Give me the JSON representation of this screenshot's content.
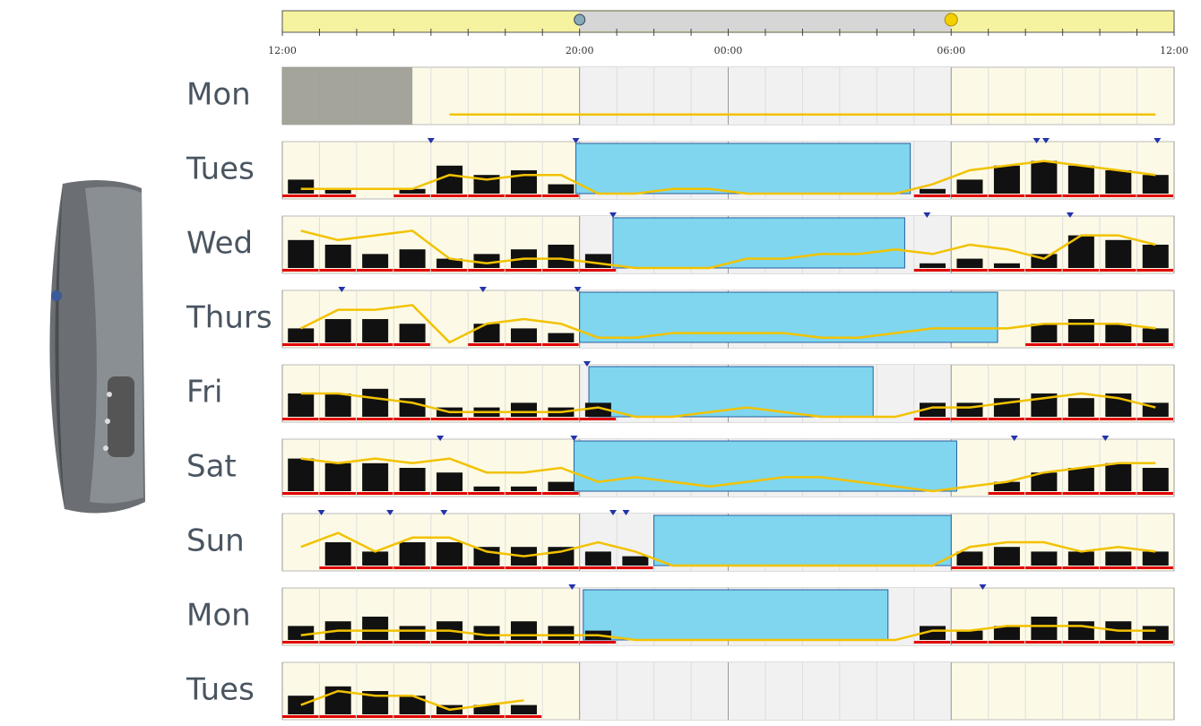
{
  "chart_data": {
    "type": "actigram",
    "xlim": [
      0,
      24
    ],
    "xticks": [
      {
        "value": 0,
        "label": "12:00"
      },
      {
        "value": 8,
        "label": "20:00"
      },
      {
        "value": 12,
        "label": "00:00"
      },
      {
        "value": 18,
        "label": "06:00"
      },
      {
        "value": 24,
        "label": "12:00"
      }
    ],
    "night": [
      8,
      18
    ],
    "activity_max": 10,
    "colors": {
      "activity": "#111111",
      "light": "#f2c200",
      "sleep": "#7fd6ee",
      "wake": "#e00000",
      "event": "#2233aa"
    },
    "days": [
      {
        "label": "Mon",
        "no_data": [
          0,
          3.5
        ],
        "sleep": null,
        "events": [],
        "activity": [
          null,
          null,
          null,
          null,
          0,
          0,
          0,
          0,
          0,
          0,
          0,
          0,
          0,
          0,
          0,
          0,
          0,
          0,
          0,
          0,
          0,
          0,
          0,
          0
        ],
        "light": [
          null,
          null,
          null,
          null,
          1,
          1,
          1,
          1,
          1,
          1,
          1,
          1,
          1,
          1,
          1,
          1,
          1,
          1,
          1,
          1,
          1,
          1,
          1,
          1
        ]
      },
      {
        "label": "Tues",
        "no_data": null,
        "sleep": [
          7.9,
          16.9
        ],
        "events": [
          4.0,
          7.9,
          20.3,
          20.55,
          23.55
        ],
        "activity": [
          3,
          1,
          0,
          1,
          6,
          4,
          5,
          2,
          0,
          0,
          0,
          0,
          0,
          0,
          0,
          0,
          0,
          1,
          3,
          6,
          7,
          6,
          5,
          4
        ],
        "light": [
          1,
          1,
          1,
          1,
          4,
          3,
          4,
          4,
          0,
          0,
          1,
          1,
          0,
          0,
          0,
          0,
          0,
          2,
          5,
          6,
          7,
          6,
          5,
          4
        ]
      },
      {
        "label": "Wed",
        "no_data": null,
        "sleep": [
          8.9,
          16.75
        ],
        "events": [
          8.9,
          17.35,
          21.2
        ],
        "activity": [
          6,
          5,
          3,
          4,
          2,
          3,
          4,
          5,
          3,
          0,
          0,
          0,
          0,
          0,
          0,
          0,
          0,
          1,
          2,
          1,
          3,
          7,
          6,
          5
        ],
        "light": [
          8,
          6,
          7,
          8,
          2,
          1,
          2,
          2,
          1,
          0,
          0,
          0,
          2,
          2,
          3,
          3,
          4,
          3,
          5,
          4,
          2,
          7,
          7,
          5
        ]
      },
      {
        "label": "Thurs",
        "no_data": null,
        "sleep": [
          8.0,
          19.25
        ],
        "events": [
          1.6,
          5.4,
          7.95
        ],
        "activity": [
          3,
          5,
          5,
          4,
          0,
          4,
          3,
          2,
          0,
          0,
          0,
          0,
          0,
          0,
          0,
          0,
          0,
          0,
          0,
          0,
          4,
          5,
          4,
          3
        ],
        "light": [
          3,
          7,
          7,
          8,
          0,
          4,
          5,
          4,
          1,
          1,
          2,
          2,
          2,
          2,
          1,
          1,
          2,
          3,
          3,
          3,
          4,
          4,
          4,
          3
        ]
      },
      {
        "label": "Fri",
        "no_data": null,
        "sleep": [
          8.25,
          15.9
        ],
        "events": [
          8.2
        ],
        "activity": [
          5,
          5,
          6,
          4,
          2,
          2,
          3,
          2,
          3,
          0,
          0,
          0,
          0,
          0,
          0,
          0,
          0,
          3,
          3,
          4,
          5,
          4,
          5,
          3
        ],
        "light": [
          5,
          5,
          4,
          3,
          1,
          1,
          1,
          1,
          2,
          0,
          0,
          1,
          2,
          1,
          0,
          0,
          0,
          2,
          2,
          3,
          4,
          5,
          4,
          2
        ]
      },
      {
        "label": "Sat",
        "no_data": null,
        "sleep": [
          7.85,
          18.15
        ],
        "events": [
          4.25,
          7.85,
          19.7,
          22.15
        ],
        "activity": [
          7,
          6,
          6,
          5,
          4,
          1,
          1,
          2,
          0,
          0,
          0,
          0,
          0,
          0,
          0,
          0,
          0,
          0,
          0,
          2,
          4,
          5,
          6,
          5
        ],
        "light": [
          7,
          6,
          7,
          6,
          7,
          4,
          4,
          5,
          2,
          3,
          2,
          1,
          2,
          3,
          3,
          2,
          1,
          0,
          1,
          2,
          4,
          5,
          6,
          6
        ]
      },
      {
        "label": "Sun",
        "no_data": null,
        "sleep": [
          10.0,
          18.0
        ],
        "events": [
          1.05,
          2.9,
          4.35,
          8.9,
          9.25
        ],
        "activity": [
          0,
          5,
          3,
          5,
          5,
          4,
          4,
          4,
          3,
          2,
          0,
          0,
          0,
          0,
          0,
          0,
          0,
          0,
          3,
          4,
          3,
          3,
          3,
          3
        ],
        "light": [
          4,
          7,
          3,
          6,
          6,
          3,
          2,
          3,
          5,
          3,
          0,
          0,
          0,
          0,
          0,
          0,
          0,
          0,
          4,
          5,
          5,
          3,
          4,
          3
        ]
      },
      {
        "label": "Mon",
        "no_data": null,
        "sleep": [
          8.1,
          16.3
        ],
        "events": [
          7.8,
          18.85
        ],
        "activity": [
          3,
          4,
          5,
          3,
          4,
          3,
          4,
          3,
          2,
          0,
          0,
          0,
          0,
          0,
          0,
          0,
          0,
          3,
          2,
          3,
          5,
          4,
          4,
          3
        ],
        "light": [
          1,
          2,
          2,
          2,
          2,
          1,
          1,
          1,
          1,
          0,
          0,
          0,
          0,
          0,
          0,
          0,
          0,
          2,
          2,
          3,
          3,
          3,
          2,
          2
        ]
      },
      {
        "label": "Tues",
        "no_data": null,
        "sleep": null,
        "events": [],
        "activity": [
          4,
          6,
          5,
          4,
          2,
          2,
          2,
          null,
          null,
          null,
          null,
          null,
          null,
          null,
          null,
          null,
          null,
          null,
          null,
          null,
          null,
          null,
          null,
          null
        ],
        "light": [
          2,
          5,
          4,
          4,
          1,
          2,
          3,
          null,
          null,
          null,
          null,
          null,
          null,
          null,
          null,
          null,
          null,
          null,
          null,
          null,
          null,
          null,
          null,
          null
        ]
      }
    ]
  }
}
